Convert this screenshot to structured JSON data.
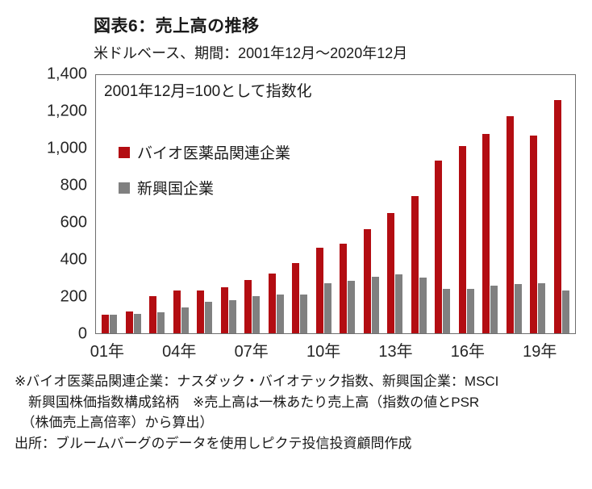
{
  "header": {
    "title": "図表6：売上高の推移",
    "subtitle": "米ドルベース、期間：2001年12月～2020年12月"
  },
  "chart_data": {
    "type": "bar",
    "title": "図表6：売上高の推移",
    "subtitle": "米ドルベース、期間：2001年12月～2020年12月",
    "annotation": "2001年12月=100として指数化",
    "categories": [
      "2001",
      "2002",
      "2003",
      "2004",
      "2005",
      "2006",
      "2007",
      "2008",
      "2009",
      "2010",
      "2011",
      "2012",
      "2013",
      "2014",
      "2015",
      "2016",
      "2017",
      "2018",
      "2019",
      "2020"
    ],
    "series": [
      {
        "name": "バイオ医薬品関連企業",
        "color": "#b30d12",
        "values": [
          100,
          120,
          200,
          230,
          230,
          250,
          290,
          325,
          380,
          465,
          485,
          565,
          650,
          745,
          935,
          1015,
          1080,
          1175,
          1070,
          1265
        ]
      },
      {
        "name": "新興国企業",
        "color": "#808080",
        "values": [
          100,
          105,
          115,
          140,
          170,
          180,
          200,
          210,
          210,
          270,
          285,
          305,
          320,
          300,
          240,
          240,
          260,
          265,
          270,
          230
        ]
      }
    ],
    "ylim": [
      0,
      1400
    ],
    "yticks": [
      0,
      200,
      400,
      600,
      800,
      1000,
      1200,
      1400
    ],
    "ytick_labels": [
      "0",
      "200",
      "400",
      "600",
      "800",
      "1,000",
      "1,200",
      "1,400"
    ],
    "xtick_labels": [
      "01年",
      "04年",
      "07年",
      "10年",
      "13年",
      "16年",
      "19年"
    ],
    "xtick_indices": [
      0,
      3,
      6,
      9,
      12,
      15,
      18
    ],
    "legend_position": "inside-left",
    "grid": false
  },
  "footer": {
    "lines": [
      "※バイオ医薬品関連企業：ナスダック・バイオテック指数、新興国企業：MSCI",
      "　新興国株価指数構成銘柄　※売上高は一株あたり売上高（指数の値とPSR",
      "　（株価売上高倍率）から算出）",
      "出所：ブルームバーグのデータを使用しピクテ投信投資顧問作成"
    ]
  }
}
